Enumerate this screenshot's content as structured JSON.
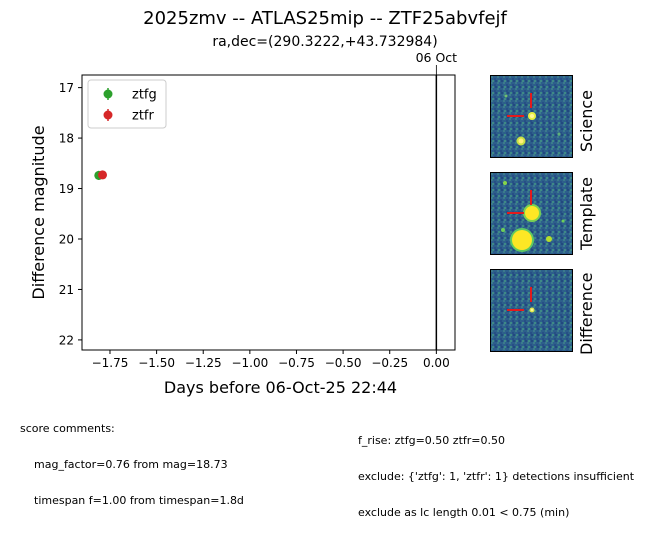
{
  "title": "2025zmv -- ATLAS25mip -- ZTF25abvfejf",
  "subtitle": "ra,dec=(290.3222,+43.732984)",
  "chart_data": {
    "type": "scatter",
    "xlabel": "Days before 06-Oct-25 22:44",
    "ylabel": "Difference magnitude",
    "xlim": [
      -1.9,
      0.1
    ],
    "ylim": [
      22.2,
      16.75
    ],
    "y_inverted": true,
    "xticks": [
      -1.75,
      -1.5,
      -1.25,
      -1.0,
      -0.75,
      -0.5,
      -0.25,
      0.0
    ],
    "xtick_labels": [
      "−1.75",
      "−1.50",
      "−1.25",
      "−1.00",
      "−0.75",
      "−0.50",
      "−0.25",
      "0.00"
    ],
    "yticks": [
      17,
      18,
      19,
      20,
      21,
      22
    ],
    "ytick_labels": [
      "17",
      "18",
      "19",
      "20",
      "21",
      "22"
    ],
    "vline": {
      "x": 0.0,
      "label": "06 Oct"
    },
    "legend_position": "top-left",
    "grid": false,
    "series": [
      {
        "name": "ztfg",
        "color": "#2ca02c",
        "points": [
          {
            "x": -1.81,
            "y": 18.74,
            "yerr": 0.09
          }
        ]
      },
      {
        "name": "ztfr",
        "color": "#d62728",
        "points": [
          {
            "x": -1.79,
            "y": 18.73,
            "yerr": 0.06
          }
        ]
      }
    ]
  },
  "stamps": [
    {
      "label": "Science"
    },
    {
      "label": "Template"
    },
    {
      "label": "Difference"
    }
  ],
  "comments": {
    "header": "score comments:",
    "left": [
      "mag_factor=0.76 from mag=18.73",
      "timespan f=1.00 from timespan=1.8d"
    ],
    "right": [
      "f_rise: ztfg=0.50 ztfr=0.50",
      "exclude: {'ztfg': 1, 'ztfr': 1} detections insufficient",
      "exclude as lc length 0.01 < 0.75 (min)"
    ]
  }
}
